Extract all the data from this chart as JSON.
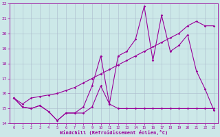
{
  "xlabel": "Windchill (Refroidissement éolien,°C)",
  "background_color": "#cce8e8",
  "grid_color": "#aabbcc",
  "line_color": "#990099",
  "x_values": [
    0,
    1,
    2,
    3,
    4,
    5,
    6,
    7,
    8,
    9,
    10,
    11,
    12,
    13,
    14,
    15,
    16,
    17,
    18,
    19,
    20,
    21,
    22,
    23
  ],
  "series1": [
    15.7,
    15.1,
    15.0,
    15.2,
    14.8,
    14.2,
    14.7,
    14.7,
    14.7,
    15.1,
    16.5,
    15.3,
    15.0,
    15.0,
    15.0,
    15.0,
    15.0,
    15.0,
    15.0,
    15.0,
    15.0,
    15.0,
    15.0,
    15.0
  ],
  "series2": [
    15.7,
    15.1,
    15.0,
    15.2,
    14.8,
    14.2,
    14.7,
    14.7,
    15.1,
    16.5,
    18.5,
    15.3,
    18.5,
    18.8,
    19.6,
    21.8,
    18.2,
    21.2,
    18.8,
    19.2,
    19.9,
    17.5,
    16.3,
    14.9
  ],
  "series3": [
    15.7,
    15.3,
    15.7,
    15.8,
    15.9,
    16.0,
    16.2,
    16.4,
    16.7,
    17.0,
    17.3,
    17.6,
    17.9,
    18.2,
    18.5,
    18.8,
    19.1,
    19.4,
    19.7,
    20.0,
    20.5,
    20.8,
    20.5,
    20.5
  ],
  "ylim": [
    14,
    22
  ],
  "yticks": [
    14,
    15,
    16,
    17,
    18,
    19,
    20,
    21,
    22
  ],
  "xticks": [
    0,
    1,
    2,
    3,
    4,
    5,
    6,
    7,
    8,
    9,
    10,
    11,
    12,
    13,
    14,
    15,
    16,
    17,
    18,
    19,
    20,
    21,
    22,
    23
  ],
  "markersize": 1.8,
  "linewidth": 0.8
}
